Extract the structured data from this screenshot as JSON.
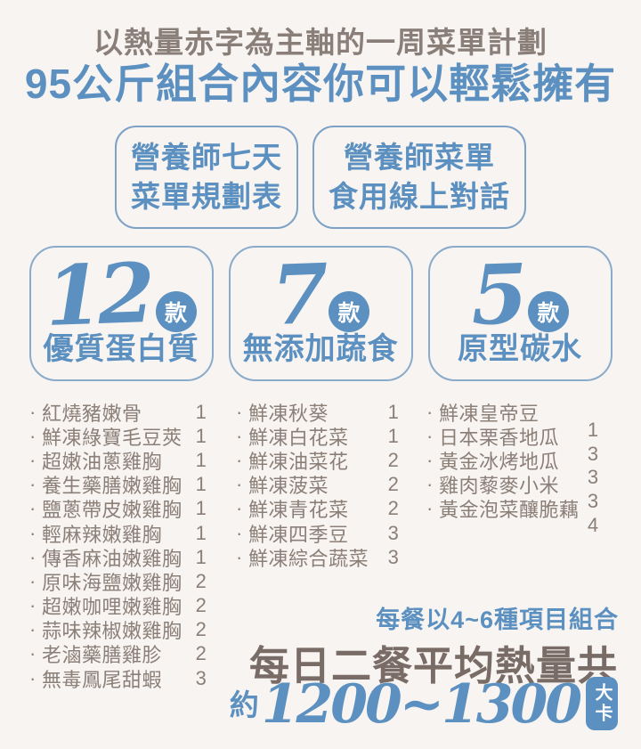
{
  "colors": {
    "background": "#f8f4f1",
    "blue": "#5b90c0",
    "border_blue": "#8aabca",
    "warm_gray": "#8b7f78",
    "dark_brown": "#796c66",
    "white": "#ffffff"
  },
  "header": {
    "subtitle": "以熱量赤字為主軸的一周菜單計劃",
    "title": "95公斤組合內容你可以輕鬆擁有"
  },
  "feature_boxes": [
    {
      "line1": "營養師七天",
      "line2": "菜單規劃表"
    },
    {
      "line1": "營養師菜單",
      "line2": "食用線上對話"
    }
  ],
  "category_cards": [
    {
      "count": "12",
      "unit": "款",
      "label": "優質蛋白質"
    },
    {
      "count": "7",
      "unit": "款",
      "label": "無添加蔬食"
    },
    {
      "count": "5",
      "unit": "款",
      "label": "原型碳水"
    }
  ],
  "menu": {
    "bullet": "·",
    "proteins": [
      {
        "name": "紅燒豬嫩骨",
        "qty": "1"
      },
      {
        "name": "鮮凍綠寶毛豆莢",
        "qty": "1"
      },
      {
        "name": "超嫩油蔥雞胸",
        "qty": "1"
      },
      {
        "name": "養生藥膳嫩雞胸",
        "qty": "1"
      },
      {
        "name": "鹽蔥帶皮嫩雞胸",
        "qty": "1"
      },
      {
        "name": "輕麻辣嫩雞胸",
        "qty": "1"
      },
      {
        "name": "傳香麻油嫩雞胸",
        "qty": "1"
      },
      {
        "name": "原味海鹽嫩雞胸",
        "qty": "2"
      },
      {
        "name": "超嫩咖哩嫩雞胸",
        "qty": "2"
      },
      {
        "name": "蒜味辣椒嫩雞胸",
        "qty": "2"
      },
      {
        "name": "老滷藥膳雞胗",
        "qty": "2"
      },
      {
        "name": "無毒鳳尾甜蝦",
        "qty": "3"
      }
    ],
    "vegetables": [
      {
        "name": "鮮凍秋葵",
        "qty": "1"
      },
      {
        "name": "鮮凍白花菜",
        "qty": "1"
      },
      {
        "name": "鮮凍油菜花",
        "qty": "2"
      },
      {
        "name": "鮮凍菠菜",
        "qty": "2"
      },
      {
        "name": "鮮凍青花菜",
        "qty": "2"
      },
      {
        "name": "鮮凍四季豆",
        "qty": "3"
      },
      {
        "name": "鮮凍綜合蔬菜",
        "qty": "3"
      }
    ],
    "carbs": {
      "items": [
        {
          "name": "鮮凍皇帝豆"
        },
        {
          "name": "日本栗香地瓜"
        },
        {
          "name": "黃金冰烤地瓜"
        },
        {
          "name": "雞肉藜麥小米"
        },
        {
          "name": "黃金泡菜釀脆藕"
        }
      ],
      "qtys": [
        "1",
        "3",
        "3",
        "3",
        "4"
      ]
    }
  },
  "footer": {
    "line1": "每餐以4~6種項目組合",
    "line2": "每日二餐平均熱量共",
    "approx": "約",
    "range": "1200~1300",
    "unit": "大卡"
  }
}
